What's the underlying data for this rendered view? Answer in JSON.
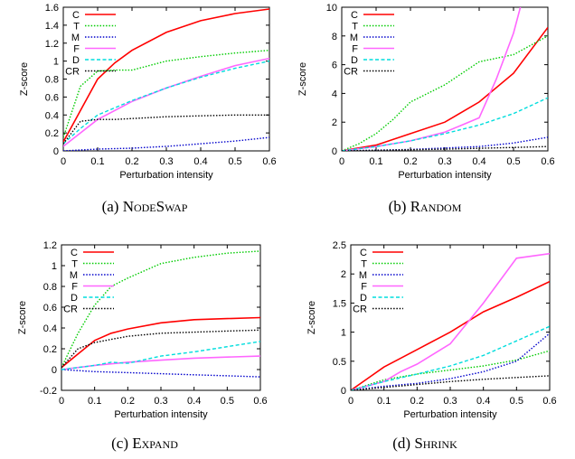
{
  "chart_data": [
    {
      "type": "line",
      "caption_prefix": "(a) ",
      "caption_name": "NodeSwap",
      "xlabel": "Perturbation intensity",
      "ylabel": "Z-score",
      "xlim": [
        0,
        0.6
      ],
      "ylim": [
        0,
        1.6
      ],
      "xticks": [
        "0",
        "0.1",
        "0.2",
        "0.3",
        "0.4",
        "0.5",
        "0.6"
      ],
      "yticks": [
        "0",
        "0.2",
        "0.4",
        "0.6",
        "0.8",
        "1",
        "1.2",
        "1.4",
        "1.6"
      ],
      "legend_position": "top-left",
      "series": [
        {
          "name": "C",
          "color": "#ff0000",
          "style": "solid",
          "x": [
            0,
            0.05,
            0.1,
            0.15,
            0.2,
            0.3,
            0.4,
            0.5,
            0.6
          ],
          "y": [
            0.1,
            0.45,
            0.8,
            0.98,
            1.12,
            1.32,
            1.45,
            1.53,
            1.58
          ]
        },
        {
          "name": "T",
          "color": "#00cc00",
          "style": "dotted",
          "x": [
            0,
            0.05,
            0.1,
            0.15,
            0.2,
            0.3,
            0.4,
            0.5,
            0.6
          ],
          "y": [
            0.15,
            0.72,
            0.89,
            0.9,
            0.9,
            1.0,
            1.05,
            1.09,
            1.12
          ]
        },
        {
          "name": "M",
          "color": "#0000cc",
          "style": "dotted",
          "x": [
            0,
            0.1,
            0.2,
            0.3,
            0.4,
            0.5,
            0.6
          ],
          "y": [
            0,
            0.02,
            0.03,
            0.05,
            0.08,
            0.11,
            0.15
          ]
        },
        {
          "name": "F",
          "color": "#ff66ff",
          "style": "solid",
          "x": [
            0,
            0.05,
            0.1,
            0.15,
            0.2,
            0.3,
            0.4,
            0.5,
            0.6
          ],
          "y": [
            0.05,
            0.2,
            0.35,
            0.45,
            0.55,
            0.7,
            0.83,
            0.95,
            1.03
          ]
        },
        {
          "name": "D",
          "color": "#00dddd",
          "style": "dashed",
          "x": [
            0,
            0.05,
            0.1,
            0.15,
            0.2,
            0.3,
            0.4,
            0.5,
            0.6
          ],
          "y": [
            0.08,
            0.25,
            0.4,
            0.48,
            0.56,
            0.7,
            0.82,
            0.92,
            1.0
          ]
        },
        {
          "name": "CR",
          "color": "#000000",
          "style": "dotted",
          "x": [
            0,
            0.05,
            0.1,
            0.15,
            0.2,
            0.3,
            0.4,
            0.5,
            0.6
          ],
          "y": [
            0.08,
            0.33,
            0.35,
            0.35,
            0.36,
            0.38,
            0.39,
            0.4,
            0.4
          ]
        }
      ]
    },
    {
      "type": "line",
      "caption_prefix": "(b) ",
      "caption_name": "Random",
      "xlabel": "Perturbation intensity",
      "ylabel": "Z-score",
      "xlim": [
        0,
        0.6
      ],
      "ylim": [
        0,
        10
      ],
      "xticks": [
        "0",
        "0.1",
        "0.2",
        "0.3",
        "0.4",
        "0.5",
        "0.6"
      ],
      "yticks": [
        "0",
        "2",
        "4",
        "6",
        "8",
        "10"
      ],
      "legend_position": "top-left",
      "series": [
        {
          "name": "C",
          "color": "#ff0000",
          "style": "solid",
          "x": [
            0,
            0.1,
            0.2,
            0.3,
            0.4,
            0.5,
            0.6
          ],
          "y": [
            0,
            0.4,
            1.2,
            2.0,
            3.4,
            5.4,
            8.6
          ]
        },
        {
          "name": "T",
          "color": "#00cc00",
          "style": "dotted",
          "x": [
            0,
            0.05,
            0.1,
            0.15,
            0.2,
            0.3,
            0.4,
            0.5,
            0.6
          ],
          "y": [
            0,
            0.5,
            1.2,
            2.2,
            3.4,
            4.6,
            6.2,
            6.7,
            8.0
          ]
        },
        {
          "name": "M",
          "color": "#0000cc",
          "style": "dotted",
          "x": [
            0,
            0.1,
            0.2,
            0.3,
            0.4,
            0.5,
            0.6
          ],
          "y": [
            0,
            0.05,
            0.1,
            0.2,
            0.3,
            0.55,
            0.95
          ]
        },
        {
          "name": "F",
          "color": "#ff66ff",
          "style": "solid",
          "x": [
            0,
            0.1,
            0.2,
            0.3,
            0.4,
            0.45,
            0.5,
            0.52
          ],
          "y": [
            0,
            0.3,
            0.7,
            1.3,
            2.3,
            5.0,
            8.2,
            10
          ]
        },
        {
          "name": "D",
          "color": "#00dddd",
          "style": "dashed",
          "x": [
            0,
            0.1,
            0.2,
            0.3,
            0.4,
            0.5,
            0.6
          ],
          "y": [
            0,
            0.3,
            0.7,
            1.2,
            1.8,
            2.6,
            3.7
          ]
        },
        {
          "name": "CR",
          "color": "#000000",
          "style": "dotted",
          "x": [
            0,
            0.1,
            0.2,
            0.3,
            0.4,
            0.5,
            0.6
          ],
          "y": [
            0,
            0.04,
            0.08,
            0.12,
            0.18,
            0.24,
            0.3
          ]
        }
      ]
    },
    {
      "type": "line",
      "caption_prefix": "(c) ",
      "caption_name": "Expand",
      "xlabel": "Perturbation intensity",
      "ylabel": "Z-score",
      "xlim": [
        0,
        0.6
      ],
      "ylim": [
        -0.2,
        1.2
      ],
      "xticks": [
        "0",
        "0.1",
        "0.2",
        "0.3",
        "0.4",
        "0.5",
        "0.6"
      ],
      "yticks": [
        "-0.2",
        "0",
        "0.2",
        "0.4",
        "0.6",
        "0.8",
        "1",
        "1.2"
      ],
      "legend_position": "top-left",
      "series": [
        {
          "name": "C",
          "color": "#ff0000",
          "style": "solid",
          "x": [
            0,
            0.05,
            0.1,
            0.15,
            0.2,
            0.3,
            0.4,
            0.5,
            0.6
          ],
          "y": [
            0.02,
            0.15,
            0.28,
            0.35,
            0.39,
            0.45,
            0.48,
            0.49,
            0.5
          ]
        },
        {
          "name": "T",
          "color": "#00cc00",
          "style": "dotted",
          "x": [
            0,
            0.05,
            0.1,
            0.15,
            0.2,
            0.3,
            0.4,
            0.5,
            0.6
          ],
          "y": [
            0.02,
            0.35,
            0.62,
            0.8,
            0.88,
            1.02,
            1.08,
            1.12,
            1.14
          ]
        },
        {
          "name": "M",
          "color": "#0000cc",
          "style": "dotted",
          "x": [
            0,
            0.1,
            0.2,
            0.3,
            0.4,
            0.5,
            0.6
          ],
          "y": [
            0,
            -0.02,
            -0.03,
            -0.04,
            -0.05,
            -0.06,
            -0.07
          ]
        },
        {
          "name": "F",
          "color": "#ff66ff",
          "style": "solid",
          "x": [
            0,
            0.1,
            0.2,
            0.3,
            0.4,
            0.5,
            0.6
          ],
          "y": [
            0,
            0.04,
            0.07,
            0.09,
            0.11,
            0.12,
            0.13
          ]
        },
        {
          "name": "D",
          "color": "#00dddd",
          "style": "dashed",
          "x": [
            0,
            0.1,
            0.15,
            0.2,
            0.3,
            0.4,
            0.5,
            0.6
          ],
          "y": [
            0,
            0.04,
            0.07,
            0.06,
            0.13,
            0.17,
            0.22,
            0.27
          ]
        },
        {
          "name": "CR",
          "color": "#000000",
          "style": "dotted",
          "x": [
            0,
            0.05,
            0.1,
            0.15,
            0.2,
            0.3,
            0.4,
            0.5,
            0.6
          ],
          "y": [
            0.02,
            0.2,
            0.26,
            0.29,
            0.32,
            0.35,
            0.36,
            0.37,
            0.38
          ]
        }
      ]
    },
    {
      "type": "line",
      "caption_prefix": "(d) ",
      "caption_name": "Shrink",
      "xlabel": "Perturbation intensity",
      "ylabel": "Z-score",
      "xlim": [
        0,
        0.6
      ],
      "ylim": [
        0,
        2.5
      ],
      "xticks": [
        "0",
        "0.1",
        "0.2",
        "0.3",
        "0.4",
        "0.5",
        "0.6"
      ],
      "yticks": [
        "0",
        "0.5",
        "1",
        "1.5",
        "2",
        "2.5"
      ],
      "legend_position": "top-left",
      "series": [
        {
          "name": "C",
          "color": "#ff0000",
          "style": "solid",
          "x": [
            0,
            0.05,
            0.1,
            0.15,
            0.2,
            0.3,
            0.4,
            0.5,
            0.6
          ],
          "y": [
            0,
            0.2,
            0.4,
            0.55,
            0.7,
            1.0,
            1.35,
            1.6,
            1.87
          ]
        },
        {
          "name": "T",
          "color": "#00cc00",
          "style": "dotted",
          "x": [
            0,
            0.1,
            0.2,
            0.3,
            0.4,
            0.5,
            0.6
          ],
          "y": [
            0,
            0.18,
            0.28,
            0.35,
            0.42,
            0.52,
            0.68
          ]
        },
        {
          "name": "M",
          "color": "#0000cc",
          "style": "dotted",
          "x": [
            0,
            0.1,
            0.2,
            0.3,
            0.4,
            0.5,
            0.6
          ],
          "y": [
            0,
            0.07,
            0.12,
            0.2,
            0.32,
            0.5,
            0.98
          ]
        },
        {
          "name": "F",
          "color": "#ff66ff",
          "style": "solid",
          "x": [
            0,
            0.1,
            0.15,
            0.2,
            0.3,
            0.4,
            0.5,
            0.6
          ],
          "y": [
            0,
            0.15,
            0.32,
            0.45,
            0.8,
            1.5,
            2.27,
            2.35
          ]
        },
        {
          "name": "D",
          "color": "#00dddd",
          "style": "dashed",
          "x": [
            0,
            0.1,
            0.2,
            0.3,
            0.4,
            0.5,
            0.6
          ],
          "y": [
            0,
            0.15,
            0.28,
            0.42,
            0.6,
            0.85,
            1.1
          ]
        },
        {
          "name": "CR",
          "color": "#000000",
          "style": "dotted",
          "x": [
            0,
            0.1,
            0.2,
            0.3,
            0.4,
            0.5,
            0.6
          ],
          "y": [
            0,
            0.05,
            0.1,
            0.15,
            0.19,
            0.22,
            0.25
          ]
        }
      ]
    }
  ]
}
